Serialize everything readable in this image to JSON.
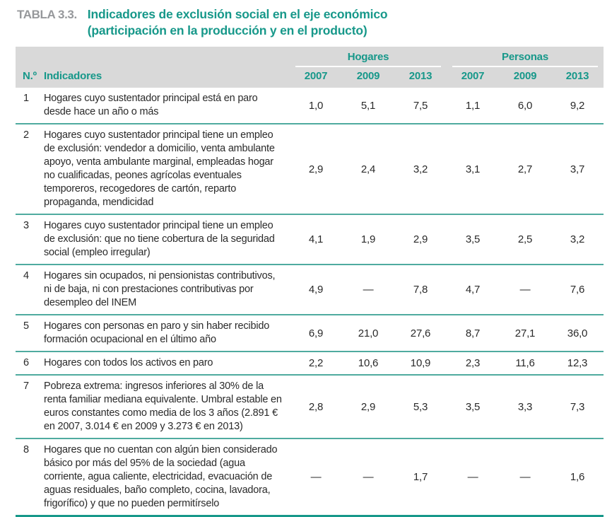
{
  "title": {
    "label": "TABLA 3.3.",
    "line1": "Indicadores de exclusión social en el eje económico",
    "line2": "(participación en la producción y en el producto)"
  },
  "table": {
    "group_headers": [
      "Hogares",
      "Personas"
    ],
    "col_num": "N.º",
    "col_indicator": "Indicadores",
    "years": [
      "2007",
      "2009",
      "2013",
      "2007",
      "2009",
      "2013"
    ],
    "rows": [
      {
        "num": "1",
        "indicator": "Hogares cuyo sustentador principal está en paro desde hace un año o más",
        "values": [
          "1,0",
          "5,1",
          "7,5",
          "1,1",
          "6,0",
          "9,2"
        ]
      },
      {
        "num": "2",
        "indicator": "Hogares cuyo sustentador principal tiene un empleo de exclusión: vendedor a domicilio, venta ambulante apoyo, venta ambulante marginal, empleadas hogar no cualificadas, peones agrícolas eventuales temporeros, recogedores de cartón, reparto propaganda, mendicidad",
        "values": [
          "2,9",
          "2,4",
          "3,2",
          "3,1",
          "2,7",
          "3,7"
        ]
      },
      {
        "num": "3",
        "indicator": "Hogares cuyo sustentador principal tiene un empleo de exclusión: que no tiene cobertura de la seguridad social (empleo irregular)",
        "values": [
          "4,1",
          "1,9",
          "2,9",
          "3,5",
          "2,5",
          "3,2"
        ]
      },
      {
        "num": "4",
        "indicator": "Hogares sin ocupados, ni pensionistas contributivos, ni de baja, ni con prestaciones contributivas por desempleo del INEM",
        "values": [
          "4,9",
          "—",
          "7,8",
          "4,7",
          "—",
          "7,6"
        ]
      },
      {
        "num": "5",
        "indicator": "Hogares con personas en paro y sin haber recibido formación ocupacional en el último año",
        "values": [
          "6,9",
          "21,0",
          "27,6",
          "8,7",
          "27,1",
          "36,0"
        ]
      },
      {
        "num": "6",
        "indicator": "Hogares con todos los activos en paro",
        "values": [
          "2,2",
          "10,6",
          "10,9",
          "2,3",
          "11,6",
          "12,3"
        ]
      },
      {
        "num": "7",
        "indicator": "Pobreza extrema: ingresos inferiores al 30% de la renta familiar mediana equivalente. Umbral estable en euros constantes como media de los 3 años (2.891 € en 2007, 3.014 € en 2009 y 3.273 € en 2013)",
        "values": [
          "2,8",
          "2,9",
          "5,3",
          "3,5",
          "3,3",
          "7,3"
        ]
      },
      {
        "num": "8",
        "indicator": "Hogares que no cuentan con algún bien consi­derado básico por más del 95% de la sociedad (agua corriente, agua caliente, electricidad, evacuación de aguas residuales, baño completo, cocina, lavadora, frigorífico) y que no pueden permitírselo",
        "values": [
          "—",
          "—",
          "1,7",
          "—",
          "—",
          "1,6"
        ]
      }
    ]
  },
  "chart_data": {
    "type": "table",
    "title": "TABLA 3.3. Indicadores de exclusión social en el eje económico (participación en la producción y en el producto)",
    "column_groups": [
      "Hogares",
      "Personas"
    ],
    "columns": [
      "N.º",
      "Indicadores",
      "Hogares 2007",
      "Hogares 2009",
      "Hogares 2013",
      "Personas 2007",
      "Personas 2009",
      "Personas 2013"
    ],
    "values": [
      [
        1.0,
        5.1,
        7.5,
        1.1,
        6.0,
        9.2
      ],
      [
        2.9,
        2.4,
        3.2,
        3.1,
        2.7,
        3.7
      ],
      [
        4.1,
        1.9,
        2.9,
        3.5,
        2.5,
        3.2
      ],
      [
        4.9,
        null,
        7.8,
        4.7,
        null,
        7.6
      ],
      [
        6.9,
        21.0,
        27.6,
        8.7,
        27.1,
        36.0
      ],
      [
        2.2,
        10.6,
        10.9,
        2.3,
        11.6,
        12.3
      ],
      [
        2.8,
        2.9,
        5.3,
        3.5,
        3.3,
        7.3
      ],
      [
        null,
        null,
        1.7,
        null,
        null,
        1.6
      ]
    ]
  },
  "colors": {
    "teal_text": "#17988a",
    "separator_teal": "#4fab9f",
    "label_gray": "#96989b",
    "header_bg": "#d9d9d9",
    "body_text": "#2a2a2a"
  }
}
